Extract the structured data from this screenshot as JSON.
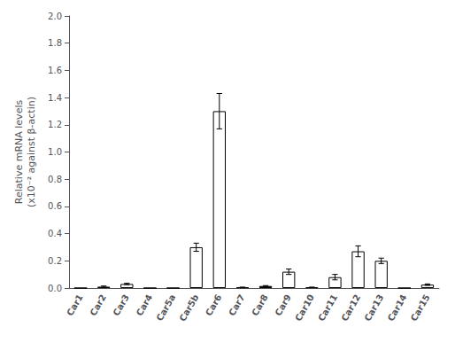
{
  "chart_data": {
    "type": "bar",
    "categories": [
      "Car1",
      "Car2",
      "Car3",
      "Car4",
      "Car5a",
      "Car5b",
      "Car6",
      "Car7",
      "Car8",
      "Car9",
      "Car10",
      "Car11",
      "Car12",
      "Car13",
      "Car14",
      "Car15"
    ],
    "values": [
      0.0,
      0.01,
      0.03,
      0.0,
      0.0,
      0.3,
      1.3,
      0.005,
      0.015,
      0.12,
      0.005,
      0.08,
      0.27,
      0.2,
      0.0,
      0.025
    ],
    "errors": [
      0.0,
      0.005,
      0.005,
      0.0,
      0.0,
      0.03,
      0.13,
      0.002,
      0.003,
      0.02,
      0.002,
      0.02,
      0.04,
      0.02,
      0.0,
      0.005
    ],
    "colors": [
      "white",
      "white",
      "white",
      "white",
      "white",
      "white",
      "white",
      "white",
      "black",
      "white",
      "white",
      "white",
      "white",
      "white",
      "white",
      "white"
    ],
    "ylabel": "Relative mRNA levels\n(x10⁻² against β-actin)",
    "ylim": [
      0,
      2.0
    ],
    "yticks": [
      {
        "value": 0.0,
        "label": "0.0"
      },
      0.2,
      0.4,
      0.6,
      0.8,
      {
        "value": 1.0,
        "label": "1.0"
      },
      1.2,
      1.4,
      1.6,
      1.8,
      {
        "value": 2.0,
        "label": "2.0"
      }
    ],
    "grid": false
  }
}
